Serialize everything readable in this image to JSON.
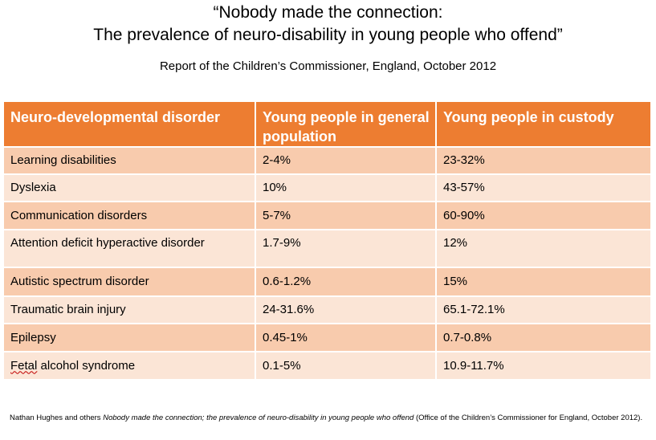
{
  "header": {
    "title_line1": "“Nobody made the connection:",
    "title_line2": "The prevalence of neuro-disability in young people who offend”",
    "subtitle": "Report of the Children’s Commissioner, England, October 2012"
  },
  "table": {
    "columns": [
      "Neuro-developmental disorder",
      "Young people in general population",
      "Young people in custody"
    ],
    "rows": [
      {
        "disorder": "Learning disabilities",
        "general": "2-4%",
        "custody": "23-32%"
      },
      {
        "disorder": "Dyslexia",
        "general": "10%",
        "custody": "43-57%"
      },
      {
        "disorder": "Communication disorders",
        "general": "5-7%",
        "custody": "60-90%"
      },
      {
        "disorder": "Attention deficit hyperactive disorder",
        "general": "1.7-9%",
        "custody": "12%"
      },
      {
        "disorder": "Autistic spectrum disorder",
        "general": "0.6-1.2%",
        "custody": "15%"
      },
      {
        "disorder": "Traumatic brain injury",
        "general": "24-31.6%",
        "custody": "65.1-72.1%"
      },
      {
        "disorder": "Epilepsy",
        "general": "0.45-1%",
        "custody": "0.7-0.8%"
      },
      {
        "disorder_prefix": "Fetal",
        "disorder_rest": " alcohol syndrome",
        "general": "0.1-5%",
        "custody": "10.9-11.7%"
      }
    ]
  },
  "footnote": {
    "author": "Nathan Hughes and others ",
    "work": "Nobody made the connection; the prevalence of neuro-disability in young people who offend",
    "publisher": " (Office of the Children’s Commissioner for England, October 2012)."
  },
  "colors": {
    "header_bg": "#ed7d31",
    "row_dark": "#f8cbad",
    "row_light": "#fbe5d6"
  }
}
